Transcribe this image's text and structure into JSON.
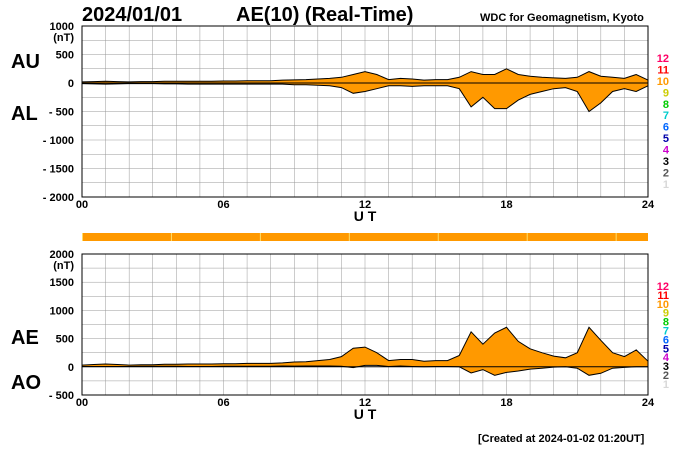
{
  "header": {
    "date": "2024/01/01",
    "title": "AE(10) (Real-Time)",
    "organization": "WDC for Geomagnetism, Kyoto",
    "created": "[Created at 2024-01-02 01:20UT]"
  },
  "colors": {
    "fill": "#ff9900",
    "line": "#000000",
    "grid": "#999999",
    "strip": "#ff9900",
    "strip_gap": "#ffdd66"
  },
  "station_colors": [
    "#d8d8d8",
    "#555555",
    "#000000",
    "#cc00cc",
    "#0000aa",
    "#0066ff",
    "#00cccc",
    "#00cc00",
    "#cccc00",
    "#ff9900",
    "#ff0000",
    "#ff0066"
  ],
  "chart_data": [
    {
      "type": "area",
      "title": "AU / AL",
      "series_labels": [
        "AU",
        "AL"
      ],
      "unit": "(nT)",
      "ylim": [
        -2000,
        1000
      ],
      "yticks": [
        "1000",
        "500",
        "0",
        "- 500",
        "- 1000",
        "- 1500",
        "- 2000"
      ],
      "ytick_values": [
        1000,
        500,
        0,
        -500,
        -1000,
        -1500,
        -2000
      ],
      "xlabel": "U T",
      "xticks": [
        "00",
        "06",
        "12",
        "18",
        "24"
      ],
      "xtick_hours": [
        0,
        6,
        12,
        18,
        24
      ],
      "station_count_labels": [
        "12",
        "11",
        "10",
        "9",
        "8",
        "7",
        "6",
        "5",
        "4",
        "3",
        "2",
        "1"
      ],
      "x": [
        0,
        0.5,
        1,
        1.5,
        2,
        2.5,
        3,
        3.5,
        4,
        4.5,
        5,
        5.5,
        6,
        6.5,
        7,
        7.5,
        8,
        8.5,
        9,
        9.5,
        10,
        10.5,
        11,
        11.5,
        12,
        12.5,
        13,
        13.5,
        14,
        14.5,
        15,
        15.5,
        16,
        16.5,
        17,
        17.5,
        18,
        18.5,
        19,
        19.5,
        20,
        20.5,
        21,
        21.5,
        22,
        22.5,
        23,
        23.5,
        24
      ],
      "series": [
        {
          "name": "AU",
          "values": [
            20,
            25,
            30,
            25,
            20,
            25,
            25,
            30,
            30,
            30,
            30,
            30,
            35,
            35,
            40,
            40,
            40,
            50,
            55,
            60,
            70,
            80,
            100,
            150,
            200,
            150,
            60,
            80,
            70,
            50,
            60,
            60,
            100,
            200,
            150,
            150,
            250,
            150,
            120,
            100,
            90,
            80,
            100,
            200,
            120,
            100,
            80,
            150,
            50
          ]
        },
        {
          "name": "AL",
          "values": [
            -10,
            -15,
            -20,
            -15,
            -10,
            -10,
            -10,
            -15,
            -15,
            -20,
            -20,
            -20,
            -20,
            -20,
            -20,
            -20,
            -20,
            -20,
            -30,
            -30,
            -40,
            -50,
            -80,
            -180,
            -150,
            -100,
            -50,
            -50,
            -60,
            -50,
            -50,
            -50,
            -100,
            -420,
            -250,
            -450,
            -450,
            -300,
            -200,
            -150,
            -100,
            -80,
            -150,
            -500,
            -350,
            -150,
            -100,
            -150,
            -50
          ]
        }
      ]
    },
    {
      "type": "area",
      "title": "AE / AO",
      "series_labels": [
        "AE",
        "AO"
      ],
      "unit": "(nT)",
      "ylim": [
        -500,
        2000
      ],
      "yticks": [
        "2000",
        "1500",
        "1000",
        "500",
        "0",
        "- 500"
      ],
      "ytick_values": [
        2000,
        1500,
        1000,
        500,
        0,
        -500
      ],
      "xlabel": "U T",
      "xticks": [
        "00",
        "06",
        "12",
        "18",
        "24"
      ],
      "xtick_hours": [
        0,
        6,
        12,
        18,
        24
      ],
      "station_count_labels": [
        "12",
        "11",
        "10",
        "9",
        "8",
        "7",
        "6",
        "5",
        "4",
        "3",
        "2",
        "1"
      ],
      "x": [
        0,
        0.5,
        1,
        1.5,
        2,
        2.5,
        3,
        3.5,
        4,
        4.5,
        5,
        5.5,
        6,
        6.5,
        7,
        7.5,
        8,
        8.5,
        9,
        9.5,
        10,
        10.5,
        11,
        11.5,
        12,
        12.5,
        13,
        13.5,
        14,
        14.5,
        15,
        15.5,
        16,
        16.5,
        17,
        17.5,
        18,
        18.5,
        19,
        19.5,
        20,
        20.5,
        21,
        21.5,
        22,
        22.5,
        23,
        23.5,
        24
      ],
      "series": [
        {
          "name": "AE",
          "values": [
            30,
            40,
            50,
            40,
            30,
            35,
            35,
            45,
            45,
            50,
            50,
            50,
            55,
            55,
            60,
            60,
            60,
            70,
            85,
            90,
            110,
            130,
            180,
            330,
            350,
            250,
            110,
            130,
            130,
            100,
            110,
            110,
            200,
            620,
            400,
            600,
            700,
            450,
            320,
            250,
            190,
            160,
            250,
            700,
            470,
            250,
            180,
            300,
            100
          ]
        },
        {
          "name": "AO",
          "values": [
            5,
            5,
            5,
            5,
            5,
            8,
            8,
            8,
            8,
            5,
            5,
            5,
            8,
            8,
            10,
            10,
            10,
            15,
            12,
            15,
            15,
            15,
            10,
            -15,
            25,
            25,
            5,
            15,
            5,
            0,
            5,
            5,
            0,
            -110,
            -50,
            -150,
            -100,
            -75,
            -40,
            -25,
            -5,
            0,
            -25,
            -150,
            -115,
            -25,
            -10,
            0,
            0
          ]
        }
      ]
    }
  ]
}
